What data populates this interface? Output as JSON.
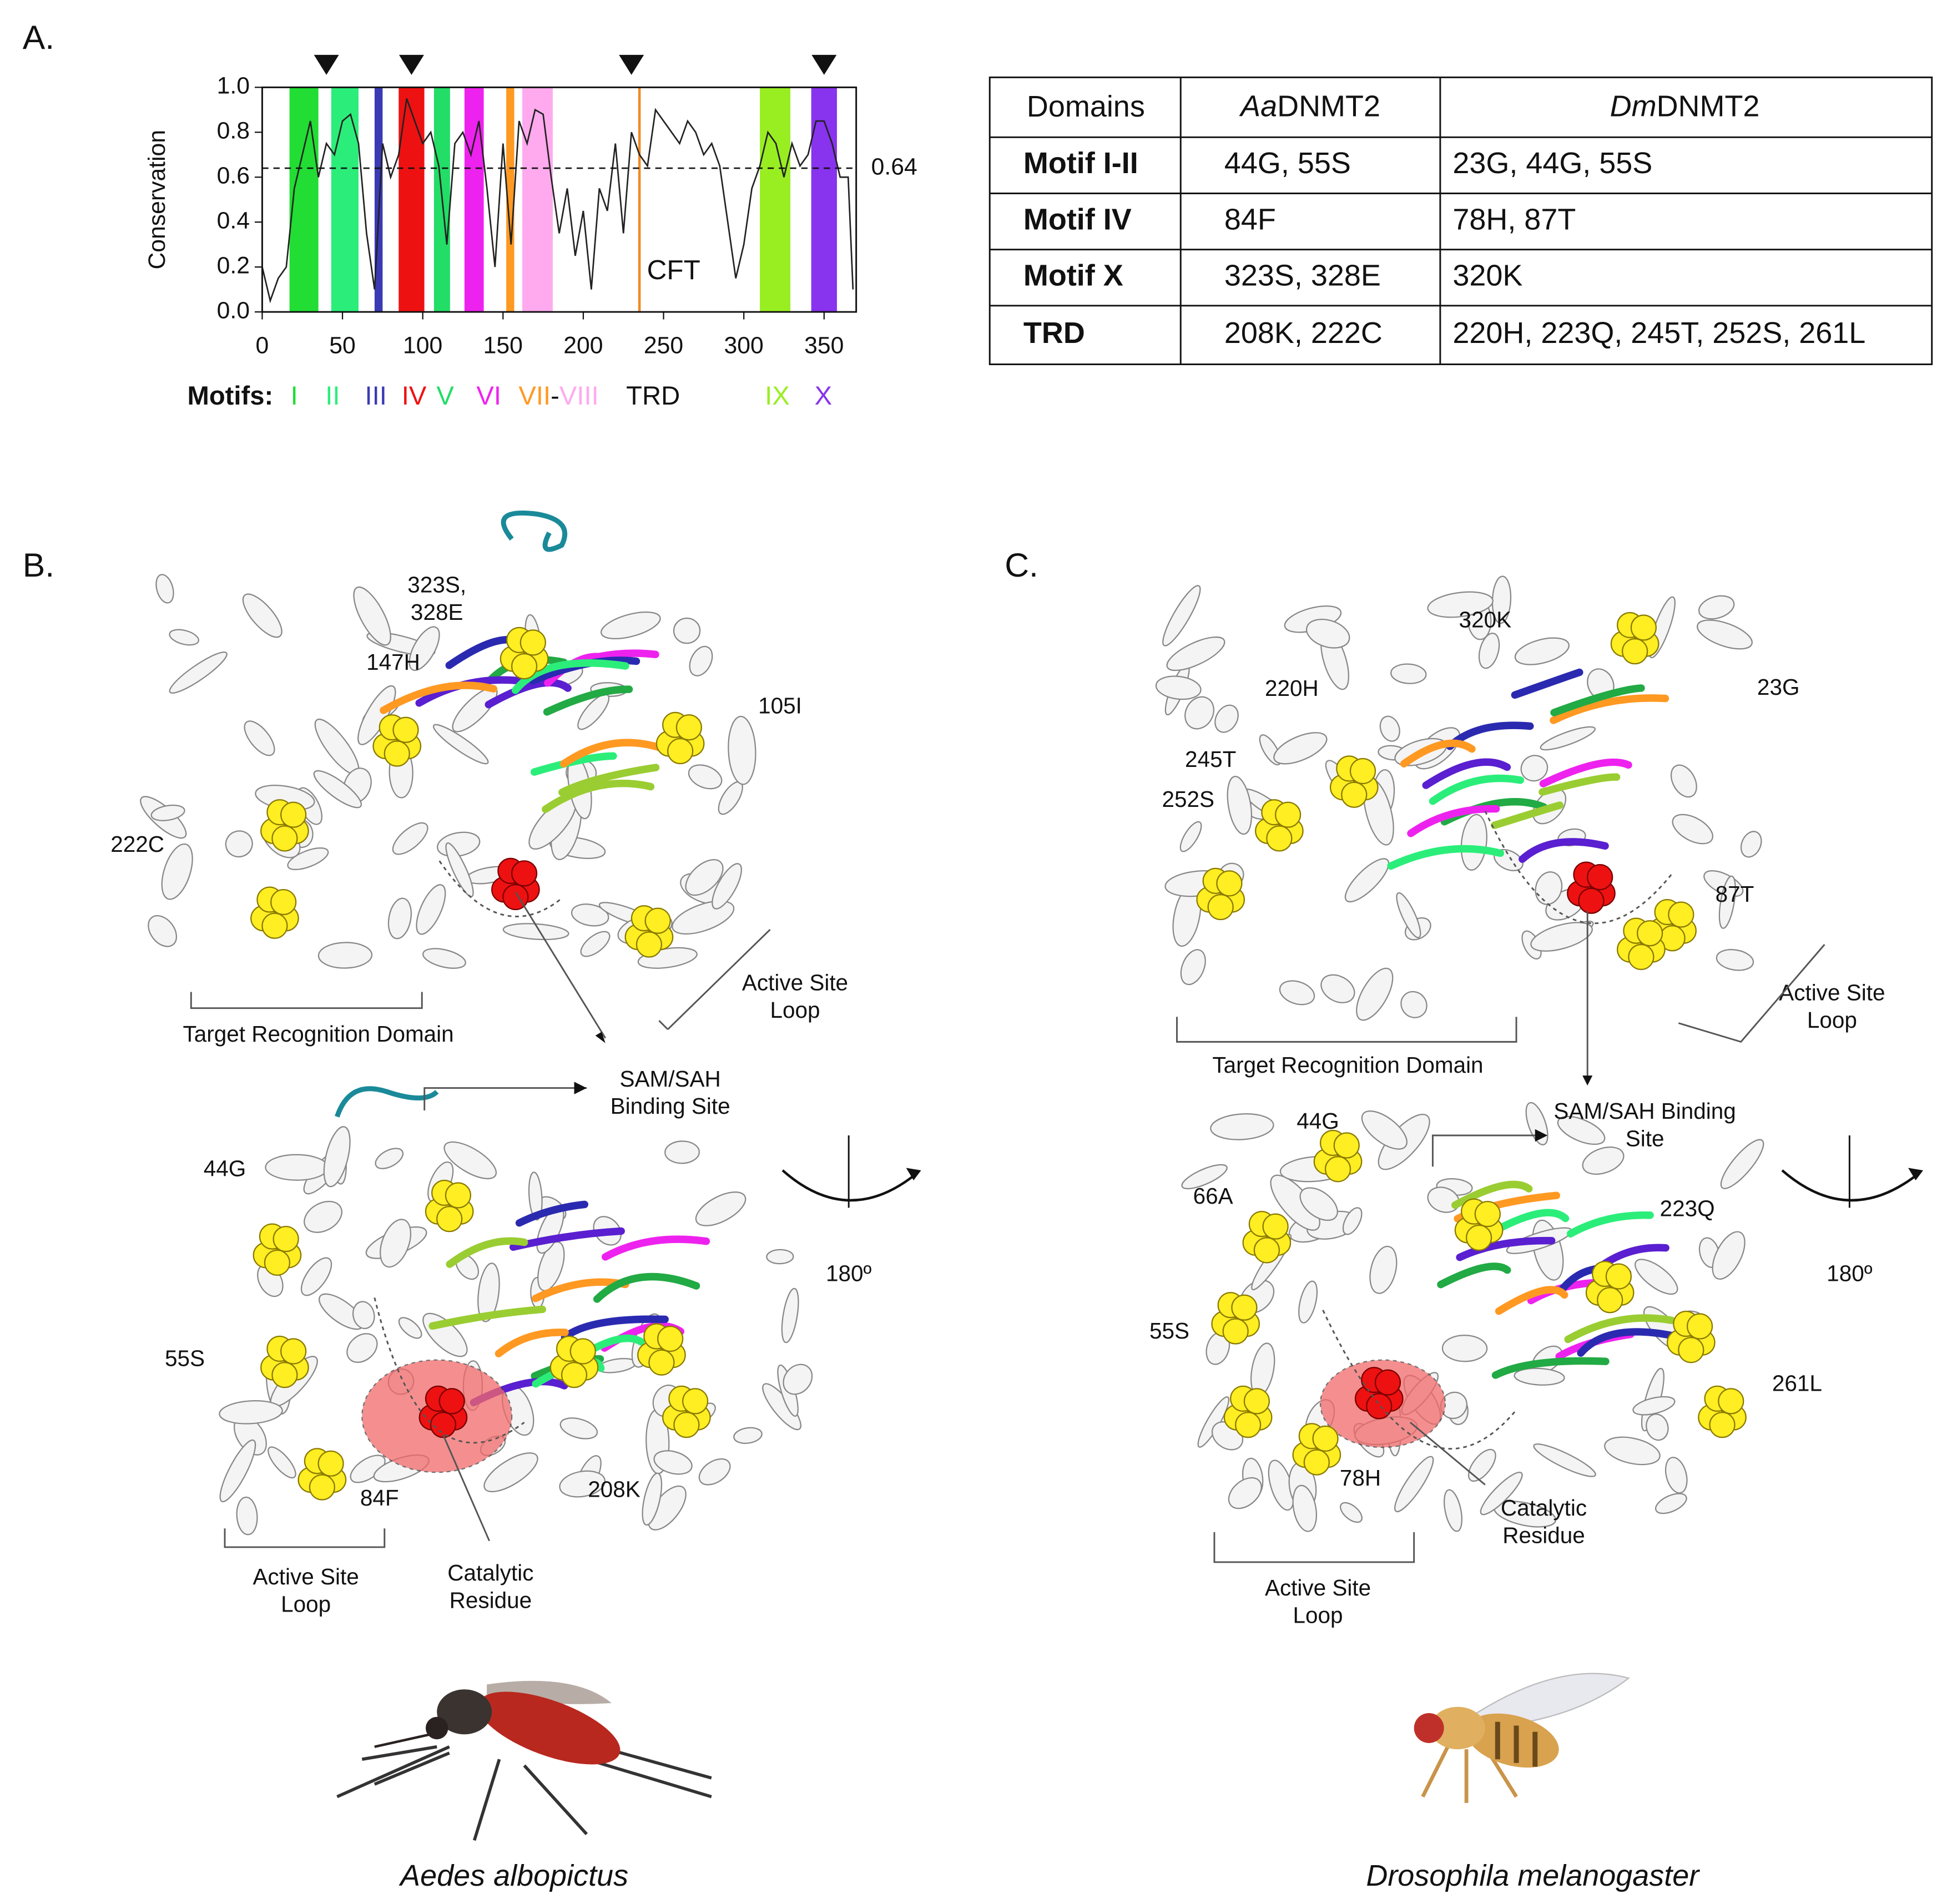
{
  "panel_labels": [
    "A.",
    "B.",
    "C."
  ],
  "chart_data": {
    "type": "line",
    "y_label": "Conservation",
    "x": [
      0,
      5,
      10,
      15,
      20,
      25,
      30,
      35,
      40,
      45,
      50,
      55,
      60,
      65,
      70,
      75,
      80,
      85,
      90,
      95,
      100,
      105,
      110,
      115,
      120,
      125,
      130,
      135,
      140,
      145,
      150,
      155,
      160,
      165,
      170,
      175,
      180,
      185,
      190,
      195,
      200,
      205,
      210,
      215,
      220,
      225,
      230,
      235,
      240,
      245,
      250,
      255,
      260,
      265,
      270,
      275,
      280,
      285,
      290,
      295,
      300,
      305,
      310,
      315,
      320,
      325,
      330,
      335,
      340,
      345,
      350,
      355,
      360,
      365,
      368
    ],
    "values": [
      0.2,
      0.05,
      0.15,
      0.2,
      0.55,
      0.7,
      0.85,
      0.6,
      0.75,
      0.7,
      0.85,
      0.88,
      0.75,
      0.35,
      0.1,
      0.75,
      0.6,
      0.7,
      0.95,
      0.85,
      0.75,
      0.8,
      0.65,
      0.3,
      0.75,
      0.8,
      0.7,
      0.85,
      0.55,
      0.2,
      0.75,
      0.3,
      0.85,
      0.75,
      0.9,
      0.88,
      0.6,
      0.35,
      0.55,
      0.25,
      0.45,
      0.1,
      0.55,
      0.45,
      0.75,
      0.35,
      0.8,
      0.7,
      0.65,
      0.9,
      0.85,
      0.8,
      0.75,
      0.85,
      0.8,
      0.7,
      0.75,
      0.65,
      0.4,
      0.15,
      0.3,
      0.55,
      0.65,
      0.8,
      0.75,
      0.6,
      0.75,
      0.65,
      0.7,
      0.85,
      0.85,
      0.75,
      0.6,
      0.6,
      0.1
    ],
    "color": "#222222",
    "xlim": [
      0,
      370
    ],
    "ylim": [
      0,
      1
    ],
    "xticks": [
      0,
      50,
      100,
      150,
      200,
      250,
      300,
      350
    ],
    "yticks": [
      {
        "value": 0,
        "label": "0.0"
      },
      0.2,
      0.4,
      0.6,
      0.8,
      {
        "value": 1,
        "label": "1.0"
      }
    ],
    "threshold": 0.64,
    "markers": [
      40,
      93,
      230,
      350
    ],
    "cft": {
      "label": "CFT",
      "position": 235,
      "color": "#f08a24"
    },
    "legend_title": "Motifs:",
    "legend_joiner": "-",
    "motifs": [
      {
        "name": "I",
        "range": [
          17,
          35
        ],
        "color": "#22dd33"
      },
      {
        "name": "II",
        "range": [
          43,
          60
        ],
        "color": "#2bee7a"
      },
      {
        "name": "III",
        "range": [
          70,
          75
        ],
        "color": "#3a3ab5"
      },
      {
        "name": "IV",
        "range": [
          85,
          101
        ],
        "color": "#ee1111"
      },
      {
        "name": "V",
        "range": [
          107,
          117
        ],
        "color": "#22dd66"
      },
      {
        "name": "VI",
        "range": [
          126,
          138
        ],
        "color": "#ee22ee"
      },
      {
        "name": "VII",
        "range": [
          152,
          157
        ],
        "color": "#ff9922"
      },
      {
        "name": "VIII",
        "range": [
          162,
          181
        ],
        "color": "#ffaaee"
      },
      {
        "name": "TRD",
        "color": "#111111"
      },
      {
        "name": "IX",
        "range": [
          310,
          329
        ],
        "color": "#99ee22"
      },
      {
        "name": "X",
        "range": [
          342,
          358
        ],
        "color": "#8833ee"
      }
    ]
  },
  "table": {
    "header": [
      "Domains",
      {
        "prefix": "Aa",
        "name": "DNMT2"
      },
      {
        "prefix": "Dm",
        "name": "DNMT2"
      }
    ],
    "rows": [
      [
        "Motif I-II",
        "44G, 55S",
        "23G, 44G, 55S"
      ],
      [
        "Motif IV",
        "84F",
        "78H, 87T"
      ],
      [
        "Motif X",
        "323S, 328E",
        "320K"
      ],
      [
        "TRD",
        "208K, 222C",
        "220H, 223Q, 245T, 252S, 261L"
      ]
    ]
  },
  "panel_b": {
    "annotations": [
      [
        "323S,",
        "328E"
      ],
      [
        "147H"
      ],
      [
        "105I"
      ],
      [
        "222C"
      ],
      [
        "Target Recognition Domain"
      ],
      [
        "Active Site",
        "Loop"
      ],
      [
        "SAM/SAH",
        "Binding Site"
      ],
      [
        "44G"
      ],
      [
        "55S"
      ],
      [
        "84F"
      ],
      [
        "208K"
      ],
      [
        "Active Site",
        "Loop"
      ],
      [
        "Catalytic",
        "Residue"
      ],
      [
        "180º"
      ]
    ],
    "species": "Aedes albopictus"
  },
  "panel_c": {
    "annotations": [
      [
        "320K"
      ],
      [
        "220H"
      ],
      [
        "23G"
      ],
      [
        "245T"
      ],
      [
        "252S"
      ],
      [
        "87T"
      ],
      [
        "Target Recognition Domain"
      ],
      [
        "Active Site",
        "Loop"
      ],
      [
        "SAM/SAH Binding",
        "Site"
      ],
      [
        "44G"
      ],
      [
        "66A"
      ],
      [
        "223Q"
      ],
      [
        "55S"
      ],
      [
        "261L"
      ],
      [
        "78H"
      ],
      [
        "Catalytic",
        "Residue"
      ],
      [
        "Active Site",
        "Loop"
      ],
      [
        "180º"
      ]
    ],
    "species": "Drosophila melanogaster"
  }
}
